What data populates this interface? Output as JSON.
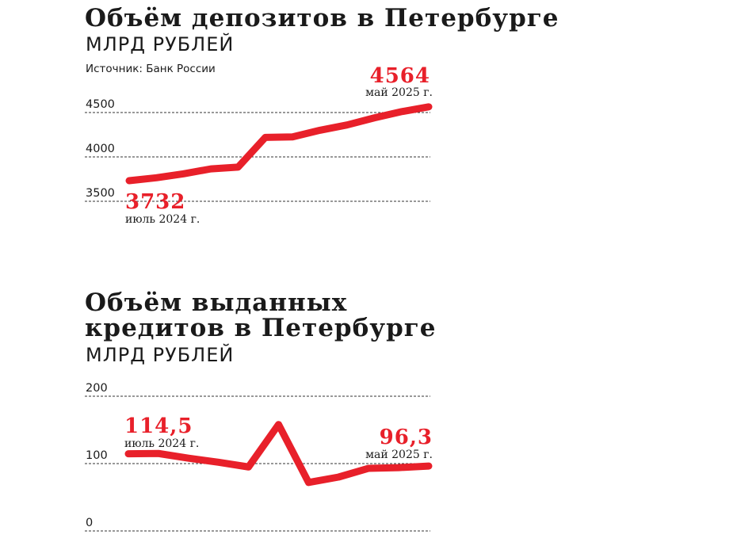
{
  "chart_data": [
    {
      "type": "line",
      "title": "Объём депозитов в Петербурге",
      "subtitle": "МЛРД РУБЛЕЙ",
      "source": "Источник: Банк России",
      "y_ticks": [
        "3500",
        "4000",
        "4500"
      ],
      "ylim": [
        3500,
        4500
      ],
      "grid": true,
      "color": "#e8202a",
      "series": [
        {
          "values": [
            3732,
            3765,
            3810,
            3865,
            3885,
            4220,
            4225,
            4300,
            4360,
            4440,
            4510,
            4564
          ]
        }
      ],
      "callouts": [
        {
          "value": "3732",
          "date": "июль 2024 г."
        },
        {
          "value": "4564",
          "date": "май 2025 г."
        }
      ]
    },
    {
      "type": "line",
      "title": "Объём выданных кредитов в Петербурге",
      "title_lines": [
        "Объём выданных",
        "кредитов в Петербурге"
      ],
      "subtitle": "МЛРД РУБЛЕЙ",
      "y_ticks": [
        "0",
        "100",
        "200"
      ],
      "ylim": [
        0,
        200
      ],
      "grid": true,
      "color": "#e8202a",
      "series": [
        {
          "values": [
            114.5,
            115,
            108,
            102,
            95,
            158,
            72,
            80,
            93,
            94,
            96.3
          ]
        }
      ],
      "callouts": [
        {
          "value": "114,5",
          "date": "июль 2024 г."
        },
        {
          "value": "96,3",
          "date": "май 2025 г."
        }
      ]
    }
  ]
}
